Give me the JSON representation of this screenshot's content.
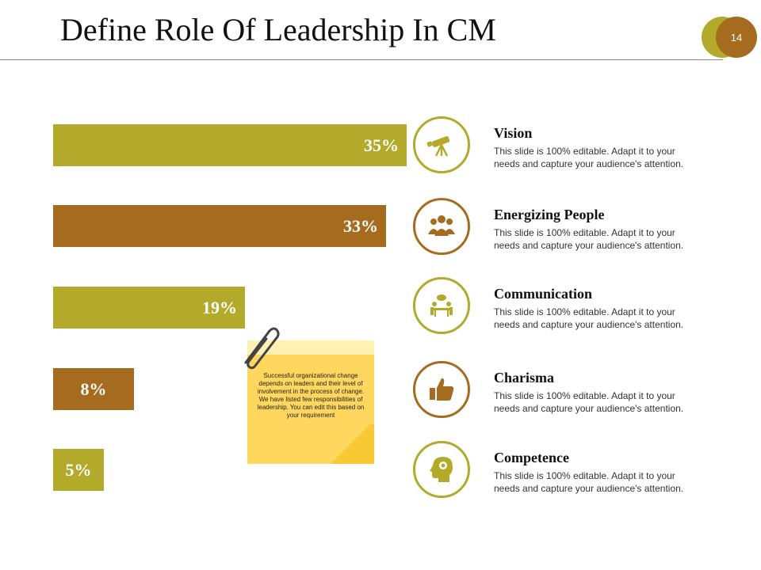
{
  "slide": {
    "title": "Define Role Of Leadership In CM",
    "page_number": "14"
  },
  "colors": {
    "olive": "#b3aa2c",
    "brown": "#a56b1e",
    "note": "#ffd75e"
  },
  "bars": [
    {
      "label": "35%",
      "value": 35
    },
    {
      "label": "33%",
      "value": 33
    },
    {
      "label": "19%",
      "value": 19
    },
    {
      "label": "8%",
      "value": 8
    },
    {
      "label": "5%",
      "value": 5
    }
  ],
  "items": [
    {
      "title": "Vision",
      "icon": "telescope-icon",
      "desc": "This slide is 100% editable. Adapt it to your\nneeds and capture your audience's attention."
    },
    {
      "title": "Energizing  People",
      "icon": "people-group-icon",
      "desc": "This slide is 100% editable. Adapt it to your\nneeds and capture your audience's attention."
    },
    {
      "title": "Communication",
      "icon": "meeting-icon",
      "desc": "This slide is 100% editable. Adapt it to your\nneeds and capture your audience's attention."
    },
    {
      "title": "Charisma",
      "icon": "thumbs-up-icon",
      "desc": "This slide is 100% editable. Adapt it to your\nneeds and capture your audience's attention."
    },
    {
      "title": "Competence",
      "icon": "head-gears-icon",
      "desc": "This slide is 100% editable. Adapt it to your\nneeds and capture your audience's attention."
    }
  ],
  "note": {
    "text": "Successful organizational change depends on leaders and their level of involvement in the process of change. We have listed few responsibilities of leadership. You can edit this based on your requirement"
  }
}
